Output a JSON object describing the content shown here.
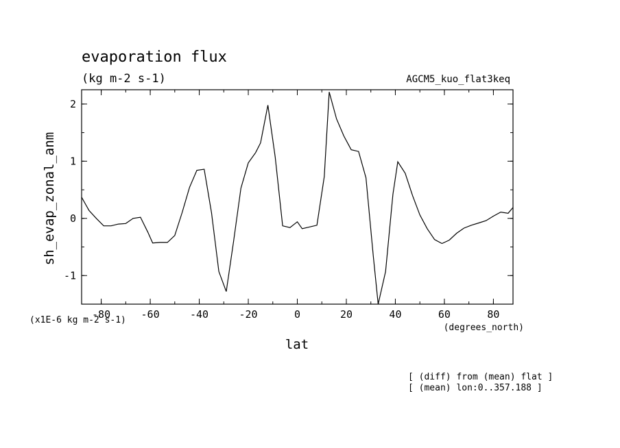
{
  "header": {
    "title": "evaporation flux",
    "units": "(kg m-2 s-1)",
    "run_name": "AGCM5_kuo_flat3keq"
  },
  "footer": {
    "note1": "[ (diff) from (mean) flat ]",
    "note2": "[ (mean) lon:0..357.188 ]"
  },
  "chart_data": {
    "type": "line",
    "xlabel": "lat",
    "xunits": "(degrees_north)",
    "ylabel": "sh_evap_zonal_anm",
    "yunits": "(x1E-6 kg m-2 s-1)",
    "xlim": [
      -88,
      88
    ],
    "ylim": [
      -1.5,
      2.25
    ],
    "xticks": [
      -80,
      -60,
      -40,
      -20,
      0,
      20,
      40,
      60,
      80
    ],
    "xtick_labels": [
      "-80",
      "-60",
      "-40",
      "-20",
      "0",
      "20",
      "40",
      "60",
      "80"
    ],
    "yticks": [
      2,
      1,
      0,
      -1
    ],
    "ytick_labels": [
      "2",
      "1",
      "0",
      "-1"
    ],
    "x_minor_step": 10,
    "y_minor_step": 0.5,
    "grid": false,
    "line_color": "#000000",
    "series": [
      {
        "x": [
          -88,
          -85,
          -82,
          -79,
          -76,
          -73,
          -70,
          -67,
          -64,
          -61,
          -59,
          -56,
          -53,
          -50,
          -47,
          -44,
          -41,
          -38,
          -35,
          -32,
          -29,
          -26,
          -23,
          -20,
          -17,
          -15,
          -12,
          -9,
          -6,
          -3,
          0,
          2,
          5,
          8,
          11,
          13,
          16,
          19,
          22,
          25,
          28,
          31,
          33,
          36,
          39,
          41,
          44,
          47,
          50,
          53,
          56,
          59,
          62,
          65,
          68,
          71,
          74,
          77,
          80,
          83,
          86,
          88
        ],
        "y": [
          0.37,
          0.14,
          0.0,
          -0.13,
          -0.13,
          -0.1,
          -0.09,
          0.0,
          0.02,
          -0.24,
          -0.43,
          -0.42,
          -0.42,
          -0.3,
          0.1,
          0.54,
          0.84,
          0.86,
          0.1,
          -0.93,
          -1.28,
          -0.4,
          0.53,
          0.97,
          1.15,
          1.32,
          1.98,
          1.07,
          -0.13,
          -0.16,
          -0.06,
          -0.18,
          -0.15,
          -0.12,
          0.73,
          2.21,
          1.74,
          1.44,
          1.2,
          1.17,
          0.71,
          -0.66,
          -1.53,
          -0.93,
          0.42,
          0.99,
          0.79,
          0.4,
          0.06,
          -0.18,
          -0.37,
          -0.44,
          -0.38,
          -0.26,
          -0.17,
          -0.12,
          -0.08,
          -0.04,
          0.04,
          0.11,
          0.09,
          0.19
        ]
      }
    ]
  }
}
